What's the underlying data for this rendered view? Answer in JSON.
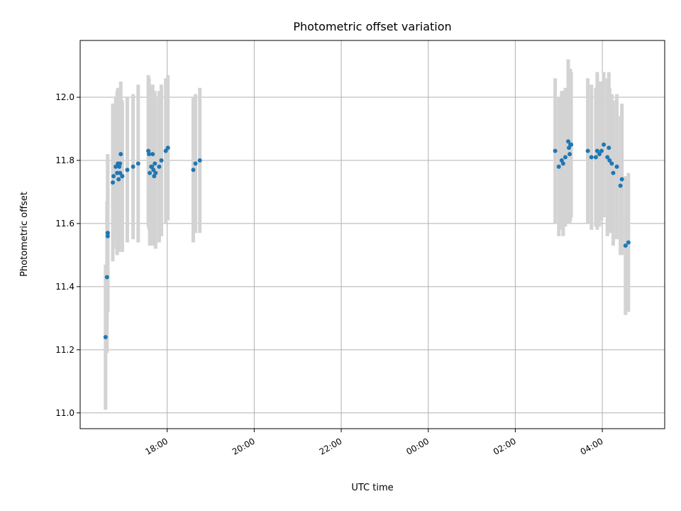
{
  "chart_data": {
    "type": "scatter",
    "title": "Photometric offset variation",
    "xlabel": "UTC time",
    "ylabel": "Photometric offset",
    "x_tick_labels": [
      "18:00",
      "20:00",
      "22:00",
      "00:00",
      "02:00",
      "04:00"
    ],
    "y_tick_labels": [
      "11.0",
      "11.2",
      "11.4",
      "11.6",
      "11.8",
      "12.0"
    ],
    "xlim": [
      "16:00",
      "05:26"
    ],
    "ylim": [
      10.95,
      12.18
    ],
    "grid": true,
    "colors": {
      "marker": "#1f77b4",
      "errorbar": "#d3d3d3",
      "grid": "#b0b0b0"
    },
    "series": [
      {
        "x": [
          "16:35",
          "16:37",
          "16:38",
          "16:38",
          "16:38",
          "16:45",
          "16:46",
          "16:49",
          "16:51",
          "16:52",
          "16:53",
          "16:54",
          "16:55",
          "16:55",
          "16:56",
          "16:58",
          "16:58",
          "17:05",
          "17:13",
          "17:20",
          "17:34",
          "17:35",
          "17:36",
          "17:38",
          "17:39",
          "17:40",
          "17:41",
          "17:42",
          "17:43",
          "17:44",
          "17:49",
          "17:52",
          "17:58",
          "18:01",
          "18:36",
          "18:39",
          "18:45",
          "02:55",
          "03:00",
          "03:04",
          "03:06",
          "03:09",
          "03:13",
          "03:14",
          "03:15",
          "03:16",
          "03:17",
          "03:40",
          "03:45",
          "03:51",
          "03:53",
          "03:56",
          "03:59",
          "04:02",
          "04:07",
          "04:09",
          "04:10",
          "04:13",
          "04:15",
          "04:20",
          "04:25",
          "04:27",
          "04:32",
          "04:36"
        ],
        "y": [
          11.24,
          11.43,
          11.57,
          11.56,
          11.57,
          11.73,
          11.75,
          11.78,
          11.76,
          11.79,
          11.74,
          11.78,
          11.76,
          11.79,
          11.82,
          11.75,
          11.75,
          11.77,
          11.78,
          11.79,
          11.83,
          11.82,
          11.76,
          11.78,
          11.78,
          11.82,
          11.77,
          11.75,
          11.79,
          11.76,
          11.78,
          11.8,
          11.83,
          11.84,
          11.77,
          11.79,
          11.8,
          11.83,
          11.78,
          11.8,
          11.79,
          11.81,
          11.86,
          11.84,
          11.82,
          11.85,
          11.85,
          11.83,
          11.81,
          11.81,
          11.83,
          11.82,
          11.83,
          11.85,
          11.81,
          11.84,
          11.8,
          11.79,
          11.76,
          11.78,
          11.72,
          11.74,
          11.53,
          11.54
        ],
        "yerr": [
          0.23,
          0.24,
          0.24,
          0.24,
          0.25,
          0.25,
          0.23,
          0.22,
          0.26,
          0.24,
          0.23,
          0.24,
          0.24,
          0.23,
          0.23,
          0.24,
          0.23,
          0.23,
          0.23,
          0.25,
          0.24,
          0.24,
          0.23,
          0.25,
          0.23,
          0.22,
          0.23,
          0.22,
          0.23,
          0.24,
          0.24,
          0.24,
          0.23,
          0.23,
          0.23,
          0.22,
          0.23,
          0.23,
          0.22,
          0.22,
          0.23,
          0.22,
          0.26,
          0.23,
          0.22,
          0.24,
          0.23,
          0.23,
          0.23,
          0.22,
          0.25,
          0.23,
          0.22,
          0.23,
          0.25,
          0.24,
          0.23,
          0.22,
          0.23,
          0.23,
          0.22,
          0.24,
          0.22,
          0.22
        ]
      }
    ]
  }
}
